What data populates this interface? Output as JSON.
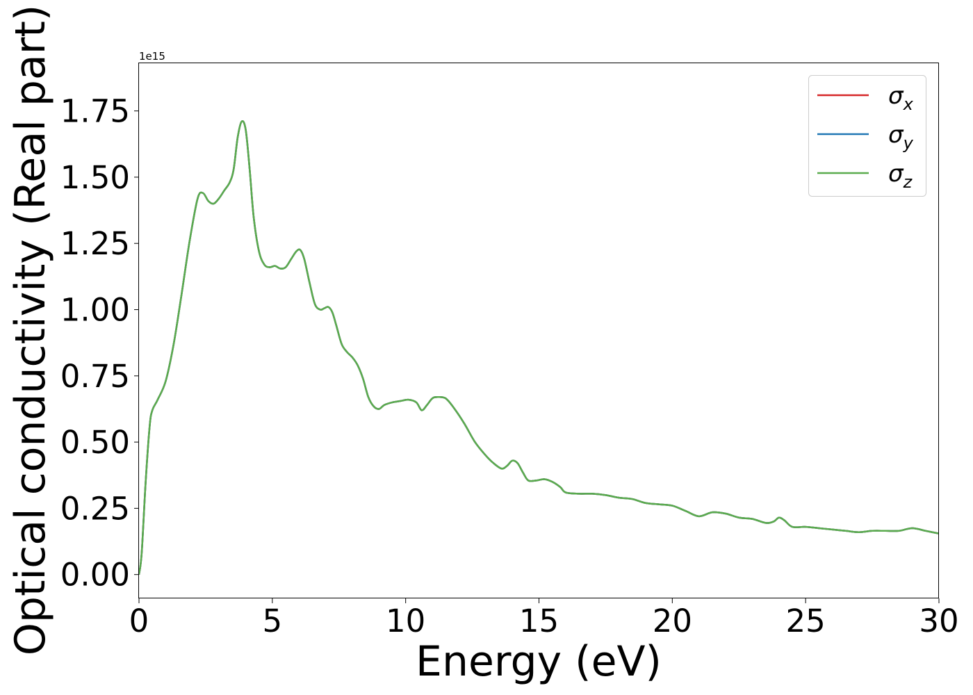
{
  "chart_data": {
    "type": "line",
    "xlabel": "Energy (eV)",
    "ylabel": "Optical conductivity (Real part)",
    "y_offset_label": "1e15",
    "y_multiplier": 1000000000000000.0,
    "xlim": [
      0,
      30
    ],
    "ylim": [
      -0.09,
      1.93
    ],
    "grid": false,
    "legend_position": "top-right",
    "x_ticks": [
      0,
      5,
      10,
      15,
      20,
      25,
      30
    ],
    "x_tick_labels": [
      "0",
      "5",
      "10",
      "15",
      "20",
      "25",
      "30"
    ],
    "y_ticks": [
      0,
      0.25,
      0.5,
      0.75,
      1.0,
      1.25,
      1.5,
      1.75
    ],
    "y_tick_labels": [
      "0.00",
      "0.25",
      "0.50",
      "0.75",
      "1.00",
      "1.25",
      "1.50",
      "1.75"
    ],
    "x": [
      0,
      0.1,
      0.25,
      0.4,
      0.5,
      0.7,
      1.0,
      1.3,
      1.6,
      1.9,
      2.2,
      2.4,
      2.6,
      2.8,
      3.0,
      3.2,
      3.4,
      3.55,
      3.7,
      3.85,
      4.0,
      4.15,
      4.3,
      4.5,
      4.7,
      4.9,
      5.1,
      5.3,
      5.5,
      5.7,
      5.9,
      6.05,
      6.2,
      6.4,
      6.6,
      6.8,
      6.95,
      7.1,
      7.25,
      7.4,
      7.6,
      7.8,
      8.0,
      8.2,
      8.4,
      8.6,
      8.8,
      9.0,
      9.2,
      9.5,
      9.8,
      10.1,
      10.4,
      10.6,
      10.8,
      11.0,
      11.2,
      11.5,
      11.8,
      12.2,
      12.6,
      13.0,
      13.3,
      13.6,
      13.8,
      14.0,
      14.2,
      14.4,
      14.6,
      14.9,
      15.2,
      15.5,
      15.8,
      16.0,
      16.5,
      17.0,
      17.5,
      18.0,
      18.5,
      19.0,
      19.5,
      20.0,
      20.5,
      21.0,
      21.5,
      22.0,
      22.5,
      23.0,
      23.5,
      23.8,
      24.0,
      24.2,
      24.5,
      25.0,
      25.5,
      26.0,
      26.5,
      27.0,
      27.5,
      28.0,
      28.5,
      29.0,
      29.5,
      30.0
    ],
    "series": [
      {
        "name": "σx",
        "color": "#d62728",
        "values": [
          0.0,
          0.08,
          0.35,
          0.56,
          0.62,
          0.66,
          0.73,
          0.87,
          1.06,
          1.26,
          1.42,
          1.44,
          1.41,
          1.4,
          1.42,
          1.45,
          1.48,
          1.53,
          1.65,
          1.71,
          1.68,
          1.53,
          1.35,
          1.22,
          1.17,
          1.16,
          1.165,
          1.155,
          1.16,
          1.19,
          1.22,
          1.225,
          1.19,
          1.1,
          1.02,
          1.0,
          1.005,
          1.01,
          0.99,
          0.94,
          0.87,
          0.84,
          0.82,
          0.79,
          0.74,
          0.67,
          0.635,
          0.625,
          0.64,
          0.65,
          0.655,
          0.66,
          0.65,
          0.62,
          0.64,
          0.665,
          0.67,
          0.665,
          0.63,
          0.57,
          0.5,
          0.45,
          0.42,
          0.4,
          0.41,
          0.43,
          0.42,
          0.385,
          0.355,
          0.355,
          0.36,
          0.35,
          0.33,
          0.31,
          0.305,
          0.305,
          0.3,
          0.29,
          0.285,
          0.27,
          0.265,
          0.26,
          0.24,
          0.22,
          0.235,
          0.23,
          0.215,
          0.21,
          0.195,
          0.2,
          0.215,
          0.205,
          0.18,
          0.18,
          0.175,
          0.17,
          0.165,
          0.16,
          0.165,
          0.165,
          0.165,
          0.175,
          0.165,
          0.155
        ]
      },
      {
        "name": "σy",
        "color": "#1f77b4",
        "values": [
          0.0,
          0.08,
          0.35,
          0.56,
          0.62,
          0.66,
          0.73,
          0.87,
          1.06,
          1.26,
          1.42,
          1.44,
          1.41,
          1.4,
          1.42,
          1.45,
          1.48,
          1.53,
          1.65,
          1.71,
          1.68,
          1.53,
          1.35,
          1.22,
          1.17,
          1.16,
          1.165,
          1.155,
          1.16,
          1.19,
          1.22,
          1.225,
          1.19,
          1.1,
          1.02,
          1.0,
          1.005,
          1.01,
          0.99,
          0.94,
          0.87,
          0.84,
          0.82,
          0.79,
          0.74,
          0.67,
          0.635,
          0.625,
          0.64,
          0.65,
          0.655,
          0.66,
          0.65,
          0.62,
          0.64,
          0.665,
          0.67,
          0.665,
          0.63,
          0.57,
          0.5,
          0.45,
          0.42,
          0.4,
          0.41,
          0.43,
          0.42,
          0.385,
          0.355,
          0.355,
          0.36,
          0.35,
          0.33,
          0.31,
          0.305,
          0.305,
          0.3,
          0.29,
          0.285,
          0.27,
          0.265,
          0.26,
          0.24,
          0.22,
          0.235,
          0.23,
          0.215,
          0.21,
          0.195,
          0.2,
          0.215,
          0.205,
          0.18,
          0.18,
          0.175,
          0.17,
          0.165,
          0.16,
          0.165,
          0.165,
          0.165,
          0.175,
          0.165,
          0.155
        ]
      },
      {
        "name": "σz",
        "color": "#5aab4d",
        "values": [
          0.0,
          0.08,
          0.35,
          0.56,
          0.62,
          0.66,
          0.73,
          0.87,
          1.06,
          1.26,
          1.42,
          1.44,
          1.41,
          1.4,
          1.42,
          1.45,
          1.48,
          1.53,
          1.65,
          1.71,
          1.68,
          1.53,
          1.35,
          1.22,
          1.17,
          1.16,
          1.165,
          1.155,
          1.16,
          1.19,
          1.22,
          1.225,
          1.19,
          1.1,
          1.02,
          1.0,
          1.005,
          1.01,
          0.99,
          0.94,
          0.87,
          0.84,
          0.82,
          0.79,
          0.74,
          0.67,
          0.635,
          0.625,
          0.64,
          0.65,
          0.655,
          0.66,
          0.65,
          0.62,
          0.64,
          0.665,
          0.67,
          0.665,
          0.63,
          0.57,
          0.5,
          0.45,
          0.42,
          0.4,
          0.41,
          0.43,
          0.42,
          0.385,
          0.355,
          0.355,
          0.36,
          0.35,
          0.33,
          0.31,
          0.305,
          0.305,
          0.3,
          0.29,
          0.285,
          0.27,
          0.265,
          0.26,
          0.24,
          0.22,
          0.235,
          0.23,
          0.215,
          0.21,
          0.195,
          0.2,
          0.215,
          0.205,
          0.18,
          0.18,
          0.175,
          0.17,
          0.165,
          0.16,
          0.165,
          0.165,
          0.165,
          0.175,
          0.165,
          0.155
        ]
      }
    ],
    "legend": [
      {
        "base": "σ",
        "sub": "x",
        "color": "#d62728"
      },
      {
        "base": "σ",
        "sub": "y",
        "color": "#1f77b4"
      },
      {
        "base": "σ",
        "sub": "z",
        "color": "#5aab4d"
      }
    ]
  }
}
